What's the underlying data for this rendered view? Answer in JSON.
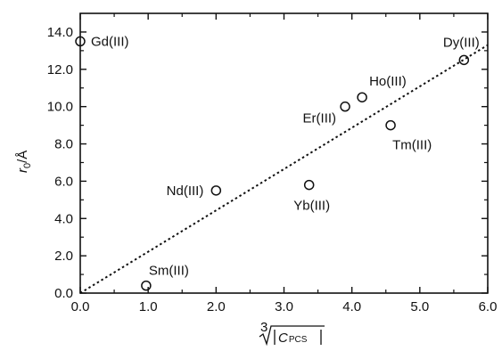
{
  "chart_data": {
    "type": "scatter",
    "xlim": [
      0.0,
      6.0
    ],
    "ylim": [
      0.0,
      15.0
    ],
    "x_ticks": [
      "0.0",
      "1.0",
      "2.0",
      "3.0",
      "4.0",
      "5.0",
      "6.0"
    ],
    "y_ticks": [
      "0.0",
      "2.0",
      "4.0",
      "6.0",
      "8.0",
      "10.0",
      "12.0",
      "14.0"
    ],
    "ylabel": {
      "main": "r",
      "subscript": "0",
      "unit": "/Å"
    },
    "xlabel": {
      "root_index": "3",
      "text": "C",
      "subscript": "PCS"
    },
    "grid": false,
    "points": [
      {
        "label": "Gd(III)",
        "x": 0.0,
        "y": 13.5
      },
      {
        "label": "Sm(III)",
        "x": 0.97,
        "y": 0.4
      },
      {
        "label": "Nd(III)",
        "x": 2.0,
        "y": 5.5
      },
      {
        "label": "Yb(III)",
        "x": 3.37,
        "y": 5.8
      },
      {
        "label": "Er(III)",
        "x": 3.9,
        "y": 10.0
      },
      {
        "label": "Ho(III)",
        "x": 4.15,
        "y": 10.5
      },
      {
        "label": "Tm(III)",
        "x": 4.57,
        "y": 9.0
      },
      {
        "label": "Dy(III)",
        "x": 5.65,
        "y": 12.5
      }
    ],
    "fit_line": {
      "style": "dotted",
      "from": [
        0.0,
        0.0
      ],
      "to": [
        6.0,
        13.3
      ]
    },
    "colors": {
      "ink": "#111111",
      "background": "#ffffff"
    }
  }
}
